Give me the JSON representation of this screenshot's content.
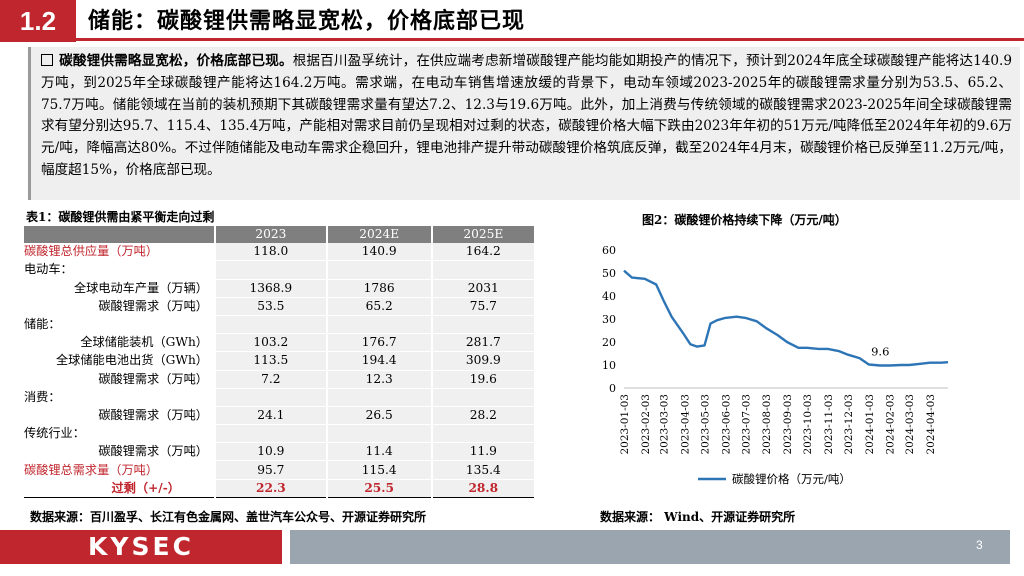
{
  "header": {
    "section_number": "1.2",
    "title": "储能：碳酸锂供需略显宽松，价格底部已现"
  },
  "summary": {
    "lead": "碳酸锂供需略显宽松，价格底部已现。",
    "body": "根据百川盈孚统计，在供应端考虑新增碳酸锂产能均能如期投产的情况下，预计到2024年底全球碳酸锂产能将达140.9万吨，到2025年全球碳酸锂产能将达164.2万吨。需求端，在电动车销售增速放缓的背景下，电动车领域2023-2025年的碳酸锂需求量分别为53.5、65.2、75.7万吨。储能领域在当前的装机预期下其碳酸锂需求量有望达7.2、12.3与19.6万吨。此外，加上消费与传统领域的碳酸锂需求2023-2025年间全球碳酸锂需求有望分别达95.7、115.4、135.4万吨，产能相对需求目前仍呈现相对过剩的状态，碳酸锂价格大幅下跌由2023年年初的51万元/吨降低至2024年年初的9.6万元/吨，降幅高达80%。不过伴随储能及电动车需求企稳回升，锂电池排产提升带动碳酸锂价格筑底反弹，截至2024年4月末，碳酸锂价格已反弹至11.2万元/吨，幅度超15%，价格底部已现。"
  },
  "table": {
    "caption": "表1：碳酸锂供需由紧平衡走向过剩",
    "columns": [
      "2023",
      "2024E",
      "2025E"
    ],
    "rows": [
      {
        "label": "碳酸锂总供应量（万吨）",
        "v": [
          "118.0",
          "140.9",
          "164.2"
        ]
      },
      {
        "label": "电动车：",
        "v": [
          "",
          "",
          ""
        ]
      },
      {
        "label": "全球电动车产量（万辆）",
        "v": [
          "1368.9",
          "1786",
          "2031"
        ]
      },
      {
        "label": "碳酸锂需求（万吨）",
        "v": [
          "53.5",
          "65.2",
          "75.7"
        ]
      },
      {
        "label": "储能：",
        "v": [
          "",
          "",
          ""
        ]
      },
      {
        "label": "全球储能装机（GWh）",
        "v": [
          "103.2",
          "176.7",
          "281.7"
        ]
      },
      {
        "label": "全球储能电池出货（GWh）",
        "v": [
          "113.5",
          "194.4",
          "309.9"
        ]
      },
      {
        "label": "碳酸锂需求（万吨）",
        "v": [
          "7.2",
          "12.3",
          "19.6"
        ]
      },
      {
        "label": "消费：",
        "v": [
          "",
          "",
          ""
        ]
      },
      {
        "label": "碳酸锂需求（万吨）",
        "v": [
          "24.1",
          "26.5",
          "28.2"
        ]
      },
      {
        "label": "传统行业：",
        "v": [
          "",
          "",
          ""
        ]
      },
      {
        "label": "碳酸锂需求（万吨）",
        "v": [
          "10.9",
          "11.4",
          "11.9"
        ]
      },
      {
        "label": "碳酸锂总需求量（万吨）",
        "v": [
          "95.7",
          "115.4",
          "135.4"
        ]
      },
      {
        "label": "过剩（+/-）",
        "v": [
          "22.3",
          "25.5",
          "28.8"
        ]
      }
    ],
    "source": "数据来源：百川盈孚、长江有色金属网、盖世汽车公众号、开源证券研究所"
  },
  "chart_data": {
    "type": "line",
    "title": "图2：碳酸锂价格持续下降（万元/吨）",
    "x_tick_labels": [
      "2023-01-03",
      "2023-02-03",
      "2023-03-03",
      "2023-04-03",
      "2023-05-03",
      "2023-06-03",
      "2023-07-03",
      "2023-08-03",
      "2023-09-03",
      "2023-10-03",
      "2023-11-03",
      "2023-12-03",
      "2024-01-03",
      "2024-02-03",
      "2024-03-03",
      "2024-04-03"
    ],
    "ylim": [
      0,
      60
    ],
    "y_ticks": [
      0,
      10,
      20,
      30,
      40,
      50,
      60
    ],
    "annotation": "9.6",
    "series": [
      {
        "name": "碳酸锂价格（万元/吨）",
        "color": "#2e75b6",
        "x": [
          "2023-01-03",
          "2023-01-15",
          "2023-02-03",
          "2023-02-20",
          "2023-03-03",
          "2023-03-15",
          "2023-04-03",
          "2023-04-12",
          "2023-04-22",
          "2023-05-03",
          "2023-05-12",
          "2023-05-22",
          "2023-06-03",
          "2023-06-20",
          "2023-07-03",
          "2023-07-20",
          "2023-08-03",
          "2023-08-20",
          "2023-09-03",
          "2023-09-20",
          "2023-10-03",
          "2023-10-20",
          "2023-11-03",
          "2023-11-20",
          "2023-12-03",
          "2023-12-20",
          "2024-01-03",
          "2024-01-20",
          "2024-02-03",
          "2024-02-20",
          "2024-03-03",
          "2024-03-20",
          "2024-04-03",
          "2024-04-20",
          "2024-04-30"
        ],
        "y": [
          51,
          48,
          47.5,
          45,
          38,
          31,
          23,
          19,
          18,
          18.5,
          28,
          29.5,
          30.5,
          31,
          30.5,
          29,
          26,
          23,
          20,
          17.5,
          17.5,
          17,
          17,
          16,
          14.5,
          13,
          10.2,
          9.8,
          9.8,
          10,
          10,
          10.5,
          11,
          11,
          11.2
        ]
      }
    ],
    "source": "数据来源： Wind、开源证券研究所"
  },
  "footer": {
    "logo_text": "KYSEC",
    "page_number": "3"
  }
}
